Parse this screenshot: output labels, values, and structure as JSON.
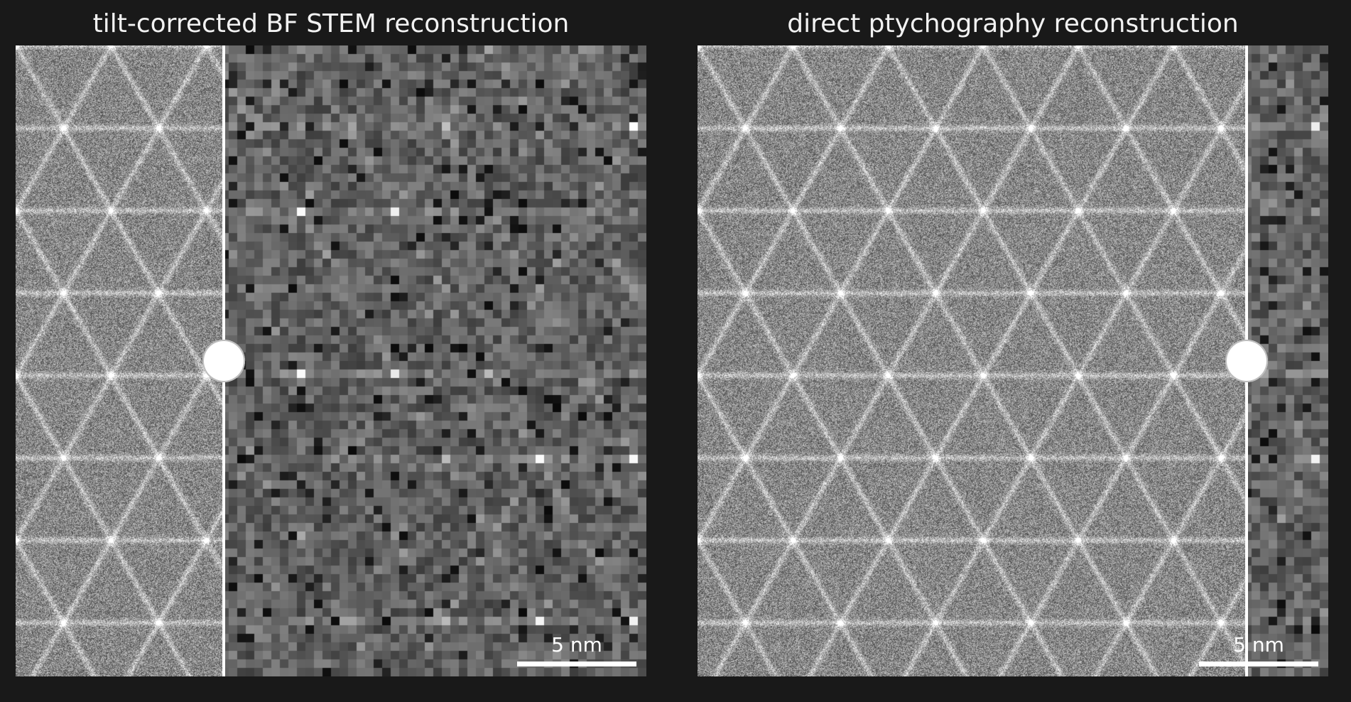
{
  "panels": [
    {
      "title": "tilt-corrected BF STEM reconstruction",
      "divider_fraction": 0.33,
      "scalebar_label": "5 nm"
    },
    {
      "title": "direct ptychography reconstruction",
      "divider_fraction": 0.87,
      "scalebar_label": "5 nm"
    }
  ],
  "colors": {
    "background": "#191919",
    "divider": "#ffffff",
    "text": "#f2f2f2"
  }
}
